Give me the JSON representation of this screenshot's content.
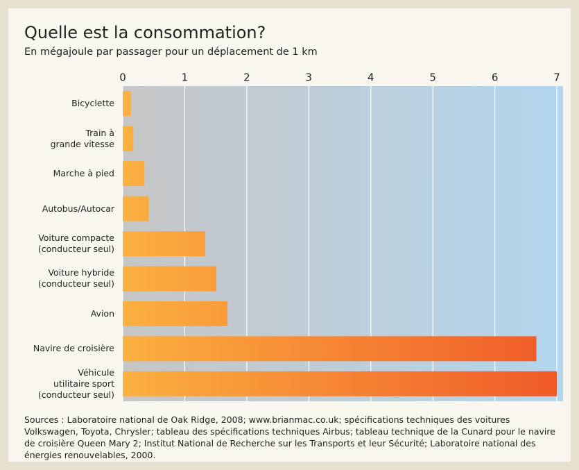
{
  "chart_data": {
    "type": "bar",
    "orientation": "horizontal",
    "title": "Quelle est la consommation?",
    "subtitle": "En mégajoule par passager pour un déplacement de 1 km",
    "categories": [
      "Bicyclette",
      "Train à\ngrande vitesse",
      "Marche à pied",
      "Autobus/Autocar",
      "Voiture compacte\n(conducteur seul)",
      "Voiture hybride\n(conducteur seul)",
      "Avion",
      "Navire de croisière",
      "Véhicule\nutilitaire sport\n(conducteur seul)"
    ],
    "values": [
      0.13,
      0.17,
      0.35,
      0.42,
      1.33,
      1.51,
      1.69,
      6.67,
      7.0
    ],
    "color": [
      "#fbb040",
      "#f05a28"
    ],
    "xlim": [
      0,
      7.1
    ],
    "xticks": [
      0,
      1,
      2,
      3,
      4,
      5,
      6,
      7
    ],
    "grid": true,
    "source": "Sources : Laboratoire national de Oak Ridge, 2008; www.brianmac.co.uk; spécifications techniques des voitures Volkswagen, Toyota, Chrysler; tableau des spécifications techniques Airbus; tableau technique de la Cunard pour le navire de croisière Queen Mary 2; Institut National de Recherche sur les Transports et leur Sécurité; Laboratoire national des énergies renouvelables, 2000."
  }
}
